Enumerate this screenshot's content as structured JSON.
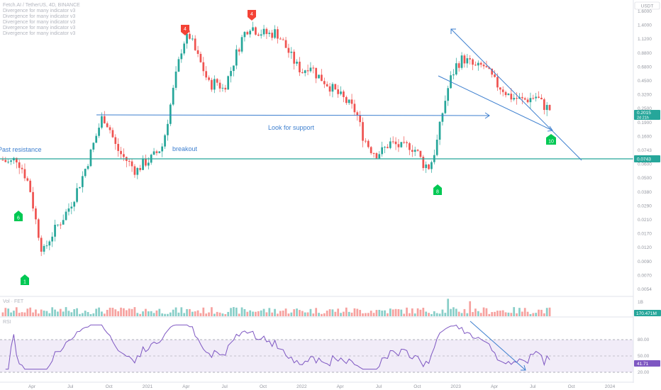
{
  "header": {
    "symbol_line": "Fetch.AI / TetherUS, 4D, BINANCE",
    "indicator_lines": [
      "Divergence for many indicator v3",
      "Divergence for many indicator v3",
      "Divergence for many indicator v3",
      "Divergence for many indicator v3",
      "Divergence for many indicator v3"
    ]
  },
  "currency": "USDT",
  "price_axis_labels": [
    "1.6000",
    "1.4000",
    "1.1200",
    "0.8800",
    "0.6800",
    "0.4500",
    "0.3200",
    "0.2500",
    "0.1900",
    "0.1600",
    "0.0743",
    "0.0600",
    "0.0500",
    "0.0380",
    "0.0290",
    "0.0210",
    "0.0170",
    "0.0120",
    "0.0090",
    "0.0070",
    "0.0054"
  ],
  "current_price": "0.2015",
  "countdown": "2d 21h",
  "support_label": "0.0743",
  "volume_pane": {
    "title": "Vol · FET",
    "axis_label": "1B",
    "current": "170.471M"
  },
  "rsi_pane": {
    "title": "RSI",
    "levels": [
      "80.00",
      "50.00",
      "20.00"
    ],
    "current": "41.71"
  },
  "time_axis_labels": [
    "Apr",
    "Jul",
    "Oct",
    "2021",
    "Apr",
    "Jul",
    "Oct",
    "2022",
    "Apr",
    "Jul",
    "Oct",
    "2023",
    "Apr",
    "Jul",
    "Oct",
    "2024"
  ],
  "annotations": {
    "past_resistance": "Past resistance",
    "breakout": "breakout",
    "look_for_support": "Look for support"
  },
  "signals": [
    {
      "label": "1",
      "color": "green"
    },
    {
      "label": "4",
      "color": "red"
    },
    {
      "label": "4",
      "color": "red"
    },
    {
      "label": "6",
      "color": "green"
    },
    {
      "label": "8",
      "color": "green"
    },
    {
      "label": "10",
      "color": "green"
    }
  ],
  "colors": {
    "up": "#26a69a",
    "down": "#ef5350",
    "trendline": "#3d7fcf",
    "support": "#26a69a",
    "rsi": "#7e57c2",
    "rsi_band": "#ede7f6",
    "signal_green": "#00c853",
    "signal_red": "#f44336"
  },
  "chart_data": {
    "type": "candlestick",
    "scale": "log",
    "interval": "4D",
    "currency": "USDT",
    "ylim": [
      0.0054,
      1.6
    ],
    "close_path": [
      0.075,
      0.07,
      0.078,
      0.062,
      0.045,
      0.022,
      0.012,
      0.016,
      0.02,
      0.024,
      0.03,
      0.04,
      0.055,
      0.08,
      0.12,
      0.18,
      0.14,
      0.095,
      0.08,
      0.07,
      0.06,
      0.07,
      0.075,
      0.085,
      0.1,
      0.2,
      0.4,
      0.75,
      0.85,
      0.6,
      0.45,
      0.32,
      0.35,
      0.3,
      0.4,
      0.6,
      0.85,
      1.05,
      0.95,
      0.9,
      0.88,
      0.92,
      0.75,
      0.6,
      0.48,
      0.42,
      0.5,
      0.4,
      0.36,
      0.32,
      0.28,
      0.25,
      0.22,
      0.19,
      0.12,
      0.095,
      0.085,
      0.09,
      0.105,
      0.1,
      0.095,
      0.1,
      0.09,
      0.07,
      0.065,
      0.1,
      0.2,
      0.35,
      0.48,
      0.55,
      0.5,
      0.45,
      0.48,
      0.4,
      0.33,
      0.3,
      0.26,
      0.25,
      0.24,
      0.25,
      0.26,
      0.22,
      0.2015
    ],
    "support_level": 0.0743,
    "rsi_levels": [
      80,
      50,
      20
    ],
    "rsi_current": 41.71,
    "volume_current": "170.471M"
  }
}
